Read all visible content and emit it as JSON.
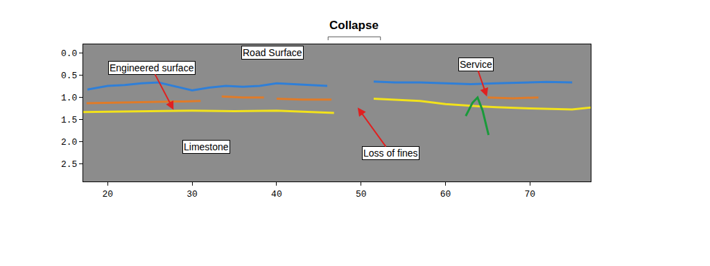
{
  "chart_data": {
    "type": "line",
    "grid": false,
    "xlim": [
      17.1,
      77.2
    ],
    "xticks": [
      20,
      30,
      40,
      50,
      60,
      70
    ],
    "ylim": [
      2.9,
      -0.2
    ],
    "yticks": [
      {
        "value": 0,
        "label": "0.0"
      },
      0.5,
      {
        "value": 1,
        "label": "1.0"
      },
      1.5,
      {
        "value": 2,
        "label": "2.0"
      },
      2.5
    ],
    "series": [
      {
        "color": "#2f7fd8",
        "x": [
          17.6,
          20,
          22,
          24,
          26,
          28,
          30,
          32,
          34,
          36,
          38,
          40,
          42,
          44,
          46,
          49,
          51.5,
          54,
          57,
          60,
          63,
          66,
          69,
          72,
          75
        ],
        "values": [
          0.82,
          0.74,
          0.72,
          0.68,
          0.66,
          0.75,
          0.84,
          0.78,
          0.74,
          0.76,
          0.74,
          0.68,
          0.7,
          0.72,
          0.74,
          null,
          0.64,
          0.66,
          0.66,
          0.68,
          0.7,
          0.68,
          0.66,
          0.65,
          0.66
        ]
      },
      {
        "color": "#e07b28",
        "x": [
          17.5,
          22,
          26,
          29,
          31,
          32,
          33.5,
          36,
          38.5,
          39.5,
          40,
          43,
          46.5,
          55,
          65,
          68,
          71
        ],
        "values": [
          1.13,
          1.12,
          1.1,
          1.09,
          1.08,
          null,
          0.98,
          1.0,
          1.0,
          null,
          1.03,
          1.05,
          1.05,
          null,
          1.0,
          1.02,
          1.0
        ]
      },
      {
        "color": "#f2e21b",
        "x": [
          17.1,
          20,
          25,
          30,
          35,
          40,
          45,
          46.8,
          49,
          51.5,
          54,
          57,
          60,
          62,
          64,
          66,
          70,
          75,
          77.2
        ],
        "values": [
          1.33,
          1.32,
          1.31,
          1.3,
          1.31,
          1.3,
          1.33,
          1.35,
          null,
          1.03,
          1.05,
          1.08,
          1.15,
          1.18,
          1.2,
          1.22,
          1.25,
          1.27,
          1.23
        ]
      },
      {
        "color": "#1a9a3a",
        "x": [
          62.4,
          63.2,
          63.8,
          64.4,
          65.1
        ],
        "values": [
          1.42,
          1.12,
          1.0,
          1.3,
          1.85
        ]
      }
    ],
    "annotations": [
      {
        "text": "Collapse",
        "x_range": [
          46.1,
          52.3
        ]
      },
      {
        "text": "Road Surface",
        "x": 39.5,
        "y": -0.02
      },
      {
        "text": "Engineered surface",
        "x": 25.2,
        "y": 0.33,
        "arrow_x": 27.8,
        "arrow_y": 1.28
      },
      {
        "text": "Limestone",
        "x": 31.7,
        "y": 2.12
      },
      {
        "text": "Service",
        "x": 63.6,
        "y": 0.25,
        "arrow_x": 64.9,
        "arrow_y": 0.98
      },
      {
        "text": "Loss of fines",
        "x": 53.5,
        "y": 2.26,
        "arrow_x": 49.6,
        "arrow_y": 1.23
      }
    ]
  }
}
